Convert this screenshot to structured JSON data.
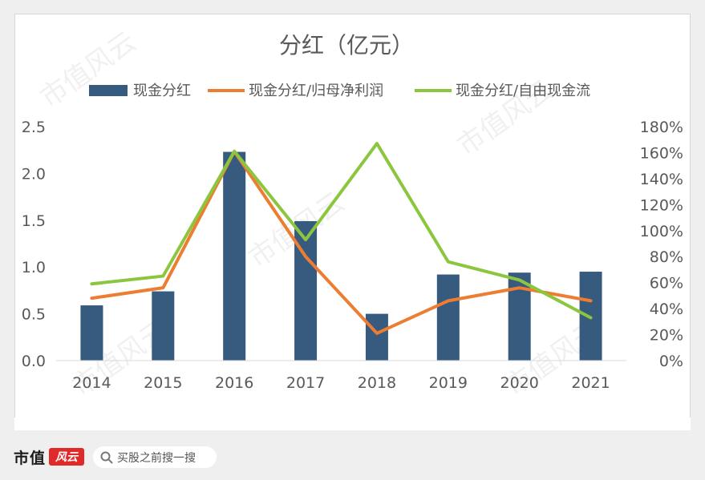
{
  "colors": {
    "bar": "#375a7f",
    "line_orange": "#ed7d31",
    "line_green": "#8cc63f",
    "axis_text": "#595959",
    "title_text": "#595959"
  },
  "chart_data": {
    "type": "bar",
    "title": "分红（亿元）",
    "categories": [
      "2014",
      "2015",
      "2016",
      "2017",
      "2018",
      "2019",
      "2020",
      "2021"
    ],
    "series": [
      {
        "name": "现金分红",
        "type": "bar",
        "axis": "left",
        "values": [
          0.59,
          0.74,
          2.23,
          1.49,
          0.5,
          0.92,
          0.94,
          0.95
        ]
      },
      {
        "name": "现金分红/归母净利润",
        "type": "line",
        "axis": "right",
        "values": [
          0.48,
          0.56,
          1.61,
          0.8,
          0.21,
          0.46,
          0.56,
          0.46
        ]
      },
      {
        "name": "现金分红/自由现金流",
        "type": "line",
        "axis": "right",
        "values": [
          0.59,
          0.65,
          1.61,
          0.93,
          1.67,
          0.76,
          0.62,
          0.33
        ]
      }
    ],
    "y_left": {
      "min": 0,
      "max": 2.5,
      "ticks": [
        "0.0",
        "0.5",
        "1.0",
        "1.5",
        "2.0",
        "2.5"
      ]
    },
    "y_right": {
      "min": 0,
      "max": 1.8,
      "ticks": [
        "0%",
        "20%",
        "40%",
        "60%",
        "80%",
        "100%",
        "120%",
        "140%",
        "160%",
        "180%"
      ]
    },
    "grid": false,
    "legend_position": "top"
  },
  "watermark_text": "市值风云",
  "footer": {
    "brand_name": "市值",
    "brand_logo_text": "风云",
    "search_placeholder": "买股之前搜一搜",
    "search_icon": "search-icon"
  }
}
